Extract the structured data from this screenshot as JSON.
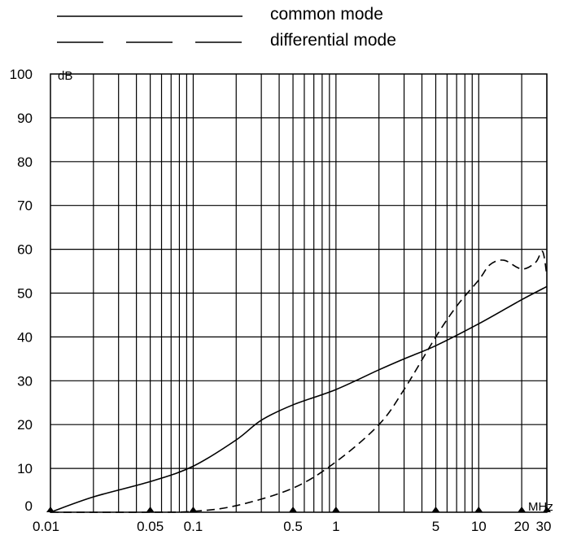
{
  "chart_data": {
    "type": "line",
    "title": "",
    "xlabel": "",
    "ylabel": "",
    "x_unit": "MHz",
    "y_unit": "dB",
    "xscale": "log",
    "xlim": [
      0.01,
      30
    ],
    "ylim": [
      0,
      100
    ],
    "x_ticks": [
      0.01,
      0.05,
      0.1,
      0.5,
      1,
      5,
      10,
      20,
      30
    ],
    "x_tick_labels": [
      "0.01",
      "0.05",
      "0.1",
      "0.5",
      "1",
      "5",
      "10",
      "20",
      "30"
    ],
    "y_ticks": [
      0,
      10,
      20,
      30,
      40,
      50,
      60,
      70,
      80,
      90,
      100
    ],
    "y_tick_labels": [
      "0",
      "10",
      "20",
      "30",
      "40",
      "50",
      "60",
      "70",
      "80",
      "90",
      "100"
    ],
    "grid": true,
    "legend_position": "top",
    "series": [
      {
        "name": "common mode",
        "style": "solid",
        "x": [
          0.01,
          0.02,
          0.05,
          0.1,
          0.2,
          0.3,
          0.5,
          1,
          2,
          3,
          5,
          10,
          20,
          30
        ],
        "y": [
          0,
          3.5,
          7,
          10.5,
          16.5,
          21,
          24.5,
          28,
          32.5,
          35,
          38,
          43,
          48.5,
          51.5
        ]
      },
      {
        "name": "differential mode",
        "style": "dashed",
        "x": [
          0.01,
          0.05,
          0.1,
          0.2,
          0.5,
          1,
          2,
          3,
          5,
          7,
          10,
          12,
          15,
          20,
          25,
          28,
          30
        ],
        "y": [
          0,
          0,
          0.2,
          1.5,
          5.5,
          11.5,
          20,
          28,
          40,
          47,
          53,
          56.5,
          57.5,
          55.5,
          57,
          59.5,
          54
        ]
      }
    ]
  }
}
